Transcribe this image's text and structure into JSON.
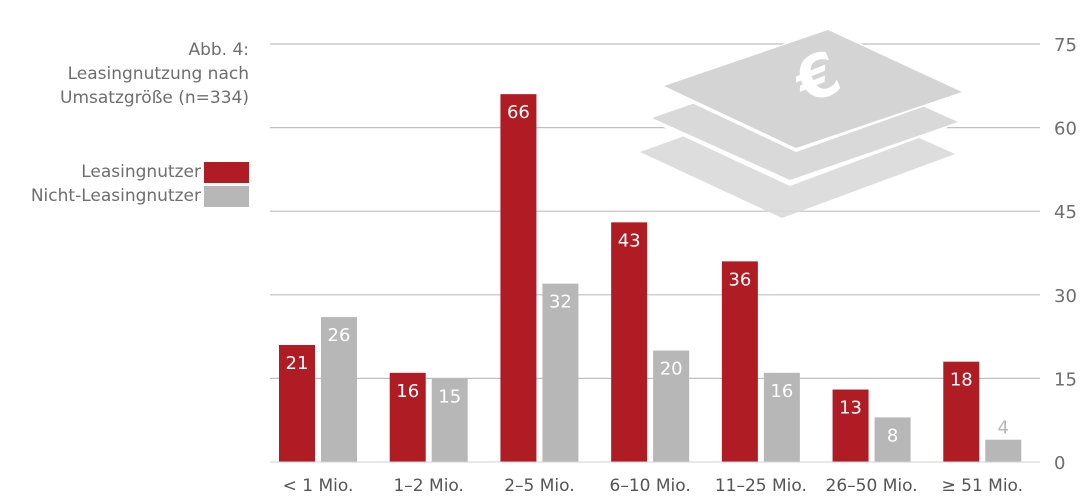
{
  "figure": {
    "caption_lines": [
      "Abb. 4:",
      "Leasingnutzung nach",
      "Umsatzgröße (n=334)"
    ]
  },
  "colors": {
    "red": "#b01c23",
    "gray": "#b7b7b7",
    "grid": "#bfbfbf",
    "icon": "#d9d9d9"
  },
  "icon": "euro-banknotes-icon",
  "chart_data": {
    "type": "bar",
    "title": "Leasingnutzung nach Umsatzgröße (n=334)",
    "categories": [
      "< 1 Mio.",
      "1–2 Mio.",
      "2–5 Mio.",
      "6–10 Mio.",
      "11–25 Mio.",
      "26–50 Mio.",
      "≥ 51 Mio."
    ],
    "series": [
      {
        "name": "Leasingnutzer",
        "color": "#b01c23",
        "values": [
          21,
          16,
          66,
          43,
          36,
          13,
          18
        ]
      },
      {
        "name": "Nicht-Leasingnutzer",
        "color": "#b7b7b7",
        "values": [
          26,
          15,
          32,
          20,
          16,
          8,
          4
        ]
      }
    ],
    "ylim": [
      0,
      75
    ],
    "yticks": [
      0,
      15,
      30,
      45,
      60,
      75
    ],
    "y_axis_side": "right",
    "grid": true,
    "legend_position": "left",
    "xlabel": "",
    "ylabel": ""
  }
}
